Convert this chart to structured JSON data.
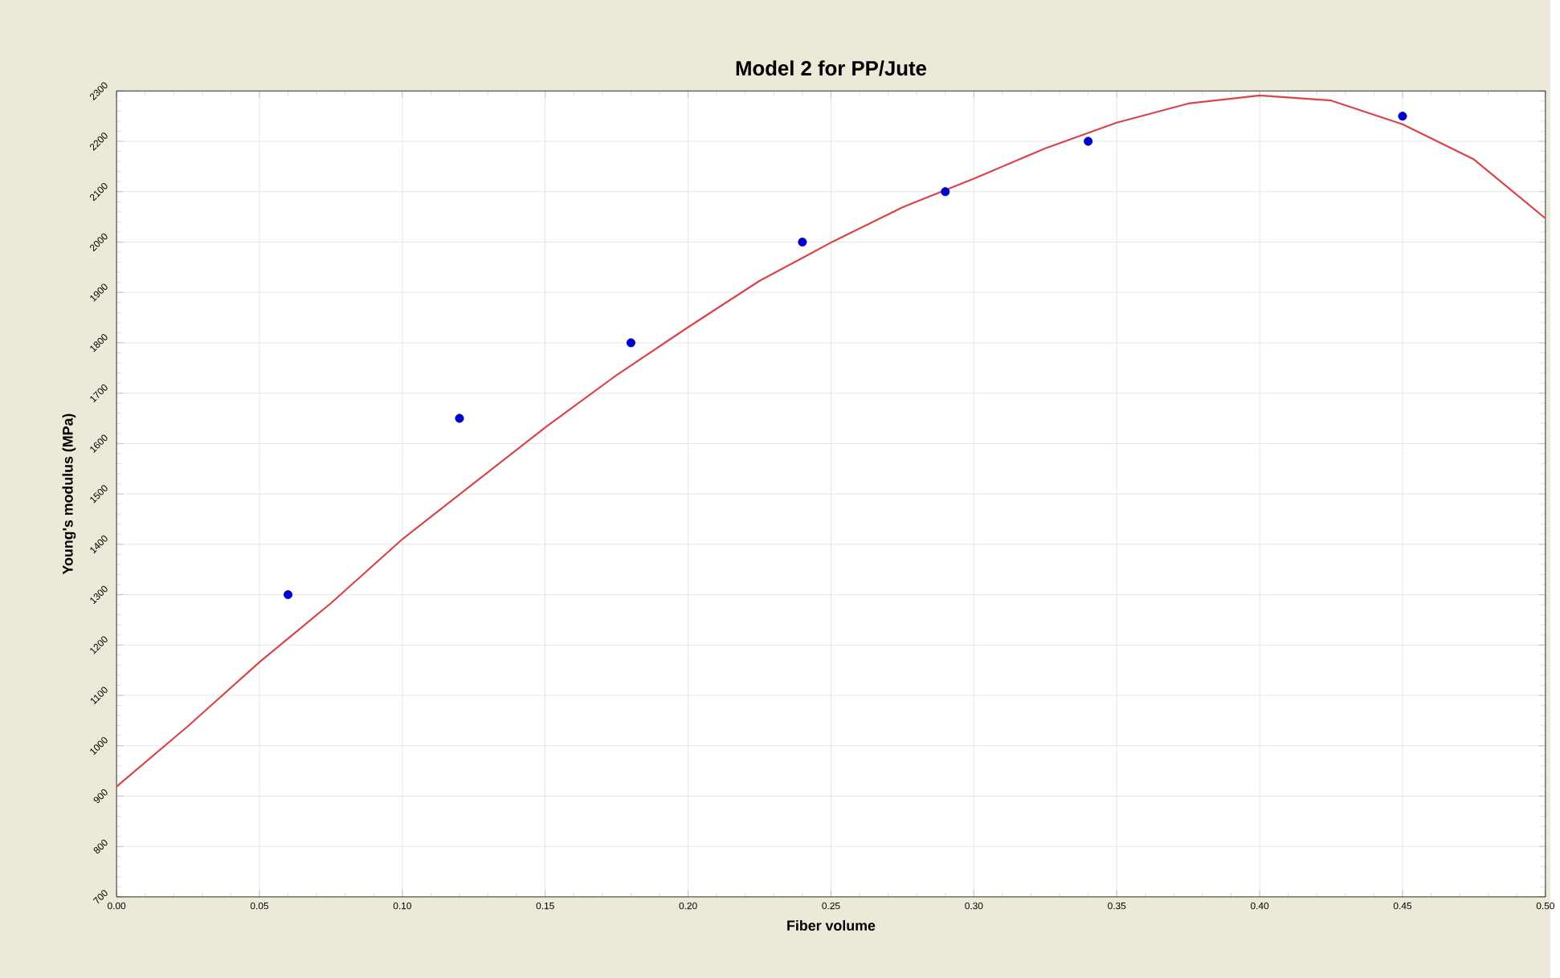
{
  "chart_data": {
    "type": "scatter",
    "title": "Model 2 for PP/Jute",
    "xlabel": "Fiber volume",
    "ylabel": "Young's modulus (MPa)",
    "xlim": [
      0,
      0.5
    ],
    "ylim": [
      700,
      2300
    ],
    "xticks": [
      {
        "value": 0,
        "label": "0.00"
      },
      {
        "value": 0.05,
        "label": "0.05"
      },
      {
        "value": 0.1,
        "label": "0.10"
      },
      {
        "value": 0.15,
        "label": "0.15"
      },
      {
        "value": 0.2,
        "label": "0.20"
      },
      {
        "value": 0.25,
        "label": "0.25"
      },
      {
        "value": 0.3,
        "label": "0.30"
      },
      {
        "value": 0.35,
        "label": "0.35"
      },
      {
        "value": 0.4,
        "label": "0.40"
      },
      {
        "value": 0.45,
        "label": "0.45"
      },
      {
        "value": 0.5,
        "label": "0.50"
      }
    ],
    "yticks": [
      700,
      800,
      900,
      1000,
      1100,
      1200,
      1300,
      1400,
      1500,
      1600,
      1700,
      1800,
      1900,
      2000,
      2100,
      2200,
      2300
    ],
    "grid": true,
    "series": [
      {
        "marker": "circle",
        "color": "#0000cc",
        "x": [
          0.06,
          0.12,
          0.18,
          0.24,
          0.29,
          0.34,
          0.45
        ],
        "values": [
          1300,
          1650,
          1800,
          2000,
          2100,
          2200,
          2250
        ]
      },
      {
        "type": "line",
        "marker": "none",
        "color": "#d9434a",
        "x": [
          0,
          0.025,
          0.05,
          0.075,
          0.1,
          0.125,
          0.15,
          0.175,
          0.2,
          0.225,
          0.25,
          0.275,
          0.3,
          0.325,
          0.35,
          0.375,
          0.4,
          0.425,
          0.45,
          0.475,
          0.5
        ],
        "values": [
          919,
          1039,
          1166,
          1283,
          1410,
          1521,
          1632,
          1736,
          1831,
          1923,
          1999,
          2069,
          2126,
          2186,
          2237,
          2275,
          2291,
          2281,
          2234,
          2164,
          2047
        ]
      }
    ]
  }
}
